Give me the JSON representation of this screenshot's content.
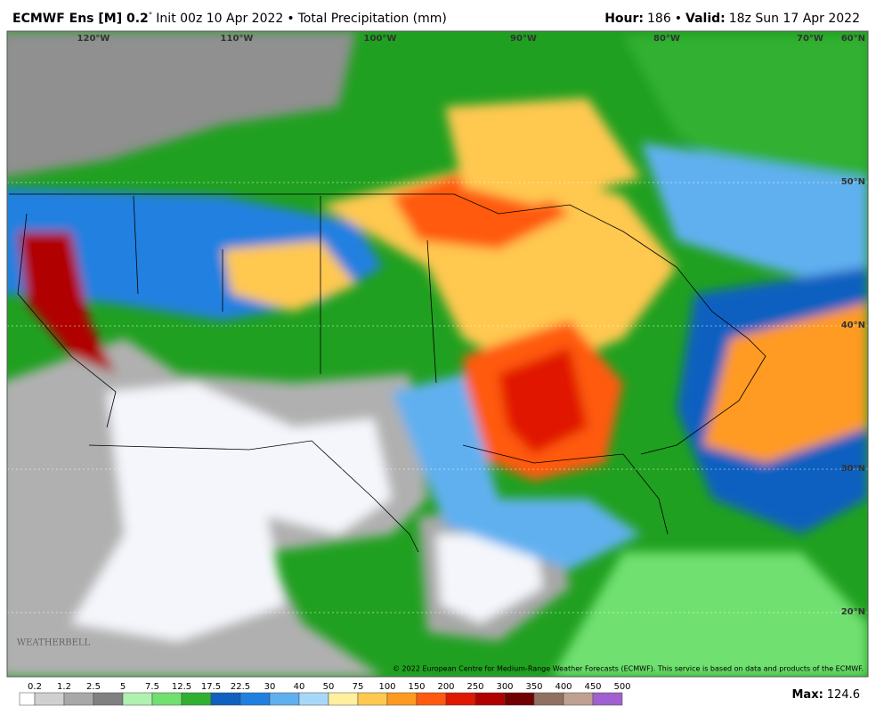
{
  "header": {
    "model": "ECMWF Ens [M] 0.2",
    "degree": "°",
    "init": "Init 00z 10 Apr 2022",
    "separator": "•",
    "product": "Total Precipitation (mm)",
    "hour_label": "Hour:",
    "hour": 186,
    "valid_label": "Valid:",
    "valid": "18z Sun 17 Apr 2022"
  },
  "map": {
    "lon_labels": [
      "120°W",
      "110°W",
      "100°W",
      "90°W",
      "80°W",
      "70°W"
    ],
    "lat_labels": [
      "60°N",
      "50°N",
      "40°N",
      "30°N",
      "20°N"
    ],
    "copyright": "© 2022 European Centre for Medium-Range Weather Forecasts (ECMWF). This service is based on data and products of the ECMWF.",
    "logo": "WEATHERBELL"
  },
  "colorbar": {
    "labels": [
      "0.2",
      "1.2",
      "2.5",
      "5",
      "7.5",
      "12.5",
      "17.5",
      "22.5",
      "30",
      "40",
      "50",
      "75",
      "100",
      "150",
      "200",
      "250",
      "300",
      "350",
      "400",
      "450",
      "500"
    ],
    "colors": [
      "#ffffff",
      "#d0d0d0",
      "#a8a8a8",
      "#808080",
      "#b0f0b0",
      "#70e070",
      "#30b030",
      "#1060c0",
      "#2080e0",
      "#60b0f0",
      "#a8d8f8",
      "#fff0a0",
      "#ffc850",
      "#ff9a20",
      "#ff5a10",
      "#e01800",
      "#b00000",
      "#700000",
      "#907060",
      "#c0a090",
      "#a060d0"
    ]
  },
  "max": {
    "label": "Max:",
    "value": 124.6
  }
}
